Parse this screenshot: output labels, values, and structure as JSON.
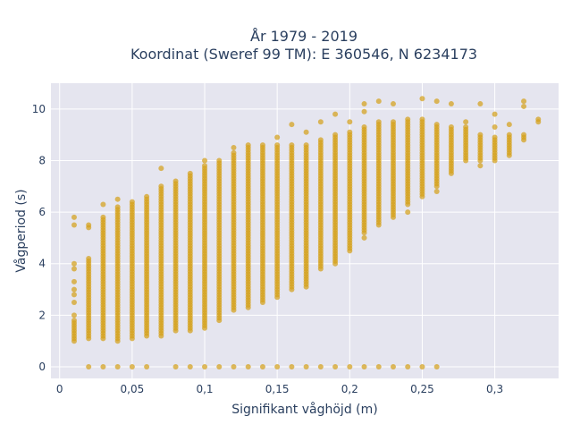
{
  "chart_data": {
    "type": "scatter",
    "title_line1": "År 1979 - 2019",
    "title_line2": "Koordinat (Sweref 99 TM): E 360546, N 6234173",
    "xlabel": "Signifikant våghöjd (m)",
    "ylabel": "Vågperiod (s)",
    "xlim": [
      -0.006,
      0.344
    ],
    "ylim": [
      -0.45,
      11.0
    ],
    "x_ticks": [
      {
        "value": 0,
        "label": "0"
      },
      {
        "value": 0.05,
        "label": "0,05"
      },
      {
        "value": 0.1,
        "label": "0,1"
      },
      {
        "value": 0.15,
        "label": "0,15"
      },
      {
        "value": 0.2,
        "label": "0,2"
      },
      {
        "value": 0.25,
        "label": "0,25"
      },
      {
        "value": 0.3,
        "label": "0,3"
      }
    ],
    "y_ticks": [
      {
        "value": 0,
        "label": "0"
      },
      {
        "value": 2,
        "label": "2"
      },
      {
        "value": 4,
        "label": "4"
      },
      {
        "value": 6,
        "label": "6"
      },
      {
        "value": 8,
        "label": "8"
      },
      {
        "value": 10,
        "label": "10"
      }
    ],
    "grid": true,
    "marker_color": "#d4a017",
    "background_color": "#e5e5ef",
    "columns": [
      {
        "x": 0.01,
        "ymin": 1.0,
        "ymax": 1.7,
        "extra": [
          1.8,
          2.0,
          2.5,
          2.8,
          3.0,
          3.3,
          3.8,
          4.0,
          5.5,
          5.8
        ]
      },
      {
        "x": 0.02,
        "ymin": 1.1,
        "ymax": 4.2,
        "extra": [
          0.0,
          5.4,
          5.5
        ]
      },
      {
        "x": 0.03,
        "ymin": 1.1,
        "ymax": 5.8,
        "extra": [
          0.0,
          6.3
        ]
      },
      {
        "x": 0.04,
        "ymin": 1.0,
        "ymax": 6.2,
        "extra": [
          0.0,
          6.5
        ]
      },
      {
        "x": 0.05,
        "ymin": 1.1,
        "ymax": 6.4,
        "extra": [
          0.0
        ]
      },
      {
        "x": 0.06,
        "ymin": 1.2,
        "ymax": 6.6,
        "extra": [
          0.0
        ]
      },
      {
        "x": 0.07,
        "ymin": 1.2,
        "ymax": 7.0,
        "extra": [
          7.7
        ]
      },
      {
        "x": 0.08,
        "ymin": 1.4,
        "ymax": 7.2,
        "extra": [
          0.0
        ]
      },
      {
        "x": 0.09,
        "ymin": 1.4,
        "ymax": 7.5,
        "extra": [
          0.0
        ]
      },
      {
        "x": 0.1,
        "ymin": 1.5,
        "ymax": 7.8,
        "extra": [
          0.0,
          8.0
        ]
      },
      {
        "x": 0.11,
        "ymin": 1.8,
        "ymax": 8.0,
        "extra": [
          0.0
        ]
      },
      {
        "x": 0.12,
        "ymin": 2.2,
        "ymax": 8.3,
        "extra": [
          0.0,
          8.5
        ]
      },
      {
        "x": 0.13,
        "ymin": 2.3,
        "ymax": 8.6,
        "extra": [
          0.0
        ]
      },
      {
        "x": 0.14,
        "ymin": 2.5,
        "ymax": 8.6,
        "extra": [
          0.0
        ]
      },
      {
        "x": 0.15,
        "ymin": 2.7,
        "ymax": 8.6,
        "extra": [
          0.0,
          8.9
        ]
      },
      {
        "x": 0.16,
        "ymin": 3.0,
        "ymax": 8.6,
        "extra": [
          0.0,
          9.4
        ]
      },
      {
        "x": 0.17,
        "ymin": 3.1,
        "ymax": 8.6,
        "extra": [
          0.0,
          9.1
        ]
      },
      {
        "x": 0.18,
        "ymin": 3.8,
        "ymax": 8.8,
        "extra": [
          0.0,
          9.5
        ]
      },
      {
        "x": 0.19,
        "ymin": 4.0,
        "ymax": 9.0,
        "extra": [
          0.0,
          9.8
        ]
      },
      {
        "x": 0.2,
        "ymin": 4.5,
        "ymax": 9.1,
        "extra": [
          0.0,
          9.5
        ]
      },
      {
        "x": 0.21,
        "ymin": 5.2,
        "ymax": 9.3,
        "extra": [
          0.0,
          5.0,
          9.9,
          10.2
        ]
      },
      {
        "x": 0.22,
        "ymin": 5.5,
        "ymax": 9.5,
        "extra": [
          0.0,
          10.3
        ]
      },
      {
        "x": 0.23,
        "ymin": 5.8,
        "ymax": 9.5,
        "extra": [
          0.0,
          10.2
        ]
      },
      {
        "x": 0.24,
        "ymin": 6.3,
        "ymax": 9.6,
        "extra": [
          0.0,
          6.0
        ]
      },
      {
        "x": 0.25,
        "ymin": 6.6,
        "ymax": 9.6,
        "extra": [
          0.0,
          10.4
        ]
      },
      {
        "x": 0.26,
        "ymin": 7.0,
        "ymax": 9.4,
        "extra": [
          0.0,
          6.8,
          10.3
        ]
      },
      {
        "x": 0.27,
        "ymin": 7.5,
        "ymax": 9.3,
        "extra": [
          10.2
        ]
      },
      {
        "x": 0.28,
        "ymin": 8.0,
        "ymax": 9.3,
        "extra": [
          9.5
        ]
      },
      {
        "x": 0.29,
        "ymin": 8.0,
        "ymax": 9.0,
        "extra": [
          7.8,
          10.2
        ]
      },
      {
        "x": 0.3,
        "ymin": 8.0,
        "ymax": 8.9,
        "extra": [
          9.3,
          9.8
        ]
      },
      {
        "x": 0.31,
        "ymin": 8.2,
        "ymax": 9.0,
        "extra": [
          9.4
        ]
      },
      {
        "x": 0.32,
        "ymin": 8.8,
        "ymax": 9.0,
        "extra": [
          10.1,
          10.3
        ]
      },
      {
        "x": 0.33,
        "ymin": 9.5,
        "ymax": 9.6,
        "extra": []
      }
    ]
  }
}
